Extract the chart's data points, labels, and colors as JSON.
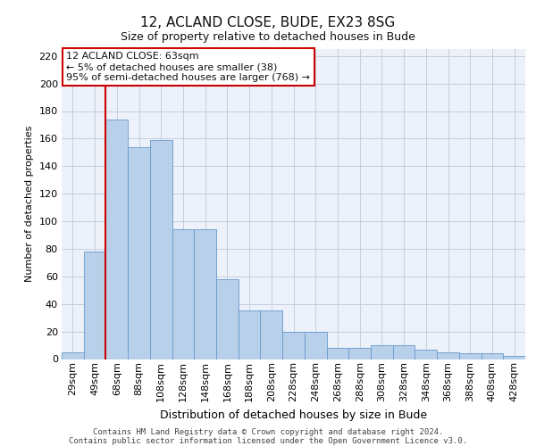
{
  "title1": "12, ACLAND CLOSE, BUDE, EX23 8SG",
  "title2": "Size of property relative to detached houses in Bude",
  "xlabel": "Distribution of detached houses by size in Bude",
  "ylabel": "Number of detached properties",
  "bar_values": [
    5,
    78,
    174,
    154,
    159,
    94,
    94,
    58,
    35,
    35,
    20,
    20,
    8,
    8,
    10,
    10,
    7,
    5,
    4,
    4,
    2
  ],
  "bar_labels": [
    "29sqm",
    "49sqm",
    "68sqm",
    "88sqm",
    "108sqm",
    "128sqm",
    "148sqm",
    "168sqm",
    "188sqm",
    "208sqm",
    "228sqm",
    "248sqm",
    "268sqm",
    "288sqm",
    "308sqm",
    "328sqm",
    "348sqm",
    "368sqm",
    "388sqm",
    "408sqm",
    "428sqm"
  ],
  "bar_color": "#b8d0ea",
  "bar_edge_color": "#6699cc",
  "vline_color": "#cc0000",
  "vline_x": 1.5,
  "annotation_line1": "12 ACLAND CLOSE: 63sqm",
  "annotation_line2": "← 5% of detached houses are smaller (38)",
  "annotation_line3": "95% of semi-detached houses are larger (768) →",
  "annotation_box_facecolor": "#ffffff",
  "annotation_box_edgecolor": "#cc0000",
  "ylim": [
    0,
    225
  ],
  "yticks": [
    0,
    20,
    40,
    60,
    80,
    100,
    120,
    140,
    160,
    180,
    200,
    220
  ],
  "footnote1": "Contains HM Land Registry data © Crown copyright and database right 2024.",
  "footnote2": "Contains public sector information licensed under the Open Government Licence v3.0.",
  "plot_bg_color": "#edf1f9",
  "grid_color": "#c5cde0",
  "fig_bg_color": "#ffffff",
  "title1_fontsize": 11,
  "title2_fontsize": 9,
  "xlabel_fontsize": 9,
  "ylabel_fontsize": 8,
  "tick_fontsize": 8,
  "annot_fontsize": 8,
  "footnote_fontsize": 6.5
}
